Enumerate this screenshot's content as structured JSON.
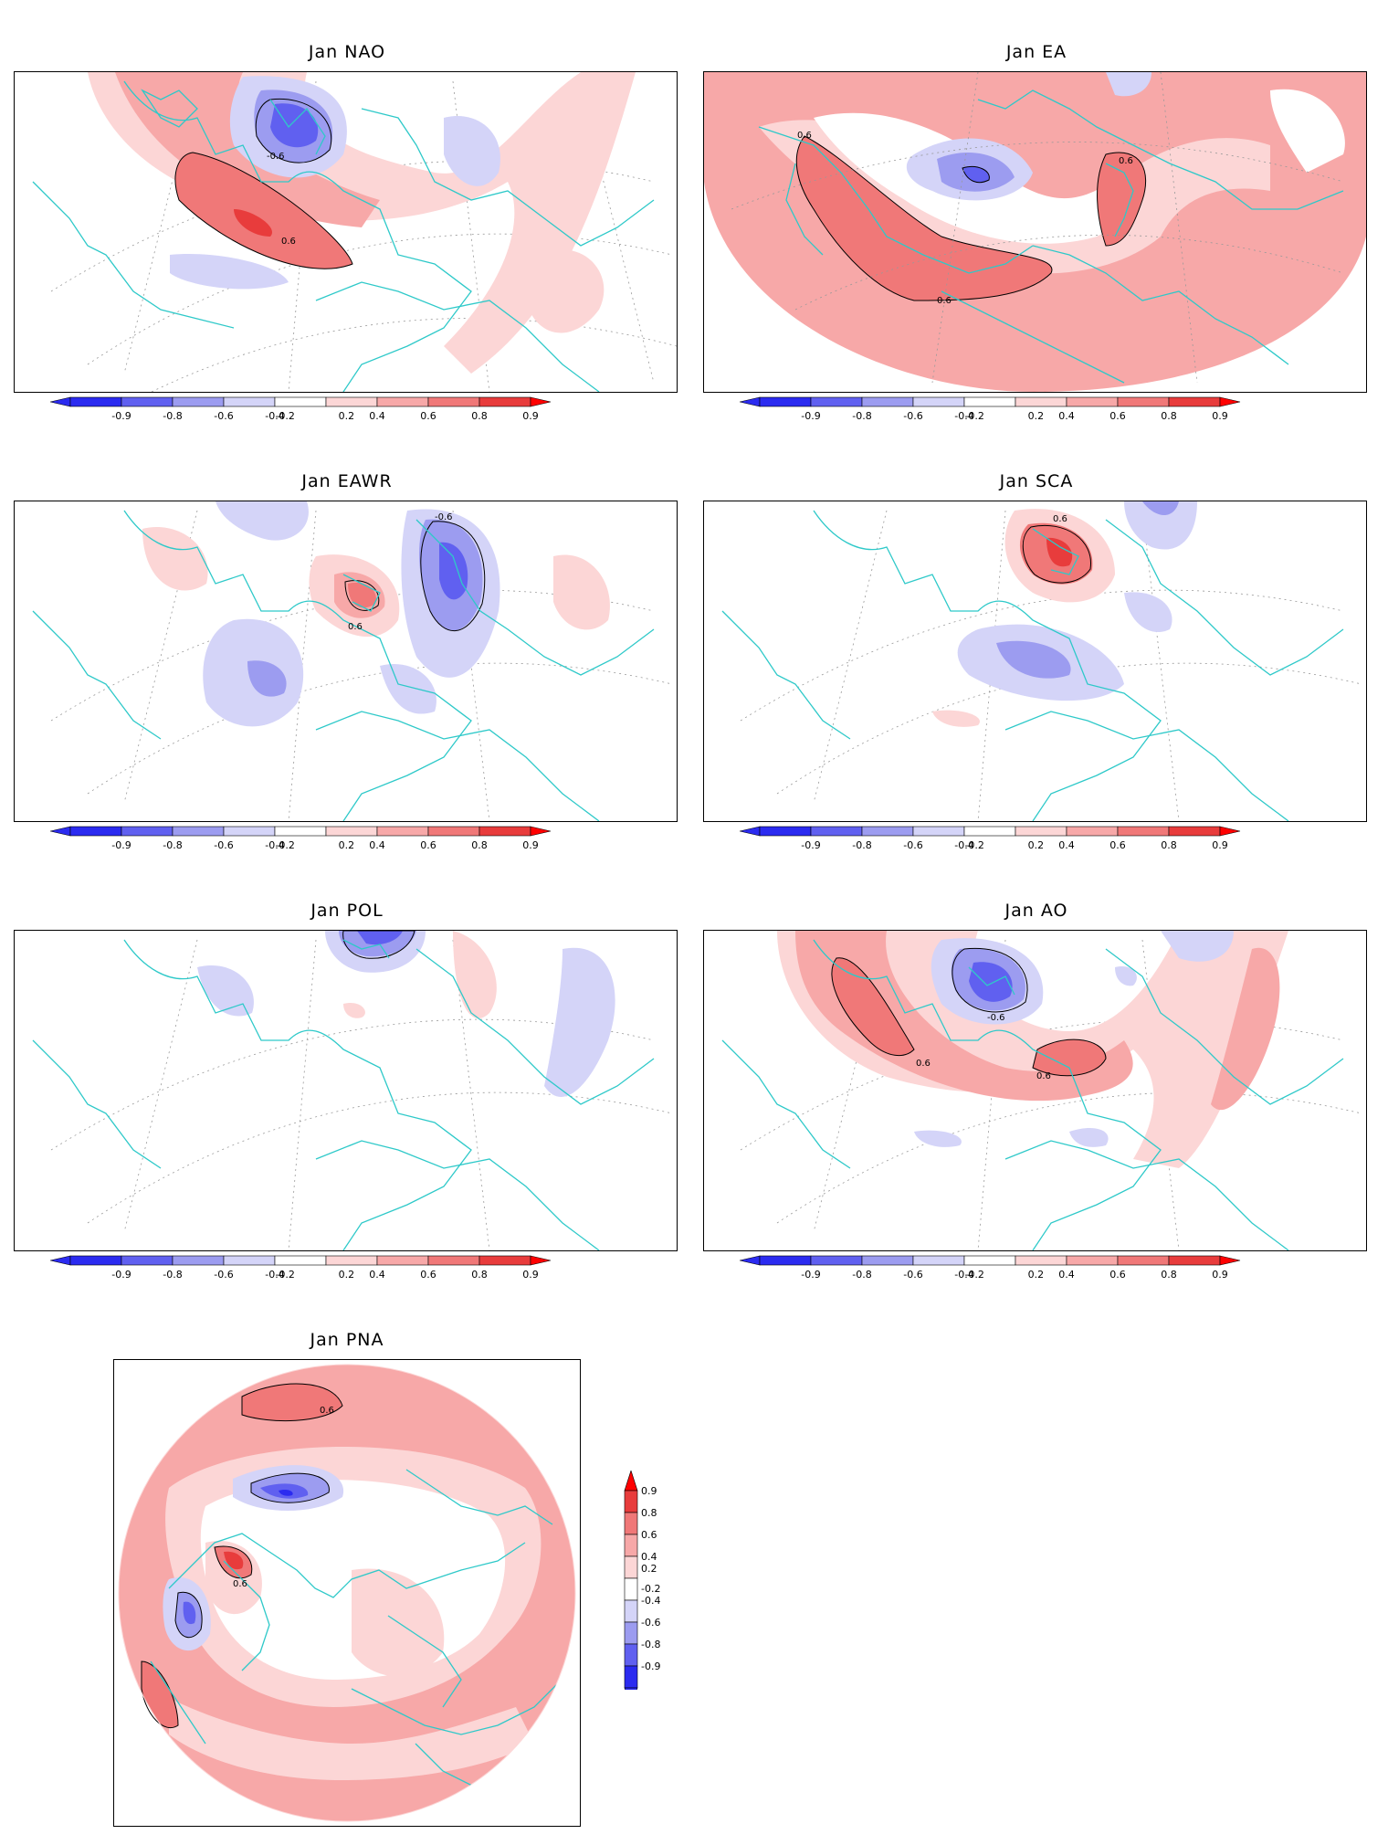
{
  "colorbar": {
    "ticks": [
      "-0.9",
      "-0.8",
      "-0.6",
      "-0.4",
      "-0.2",
      "0.2",
      "0.4",
      "0.6",
      "0.8",
      "0.9"
    ],
    "vertical_ticks": [
      "0.9",
      "0.8",
      "0.6",
      "0.4",
      "0.2",
      "-0.2",
      "-0.4",
      "-0.6",
      "-0.8",
      "-0.9"
    ],
    "colors": {
      "neg4": "#2b2bf0",
      "neg3": "#6060f0",
      "neg2": "#9c9cf0",
      "neg1": "#d4d4f8",
      "zero": "#ffffff",
      "pos1": "#fcd6d6",
      "pos2": "#f7a8a8",
      "pos3": "#f07878",
      "pos4": "#e83c3c",
      "pos5": "#ff0000"
    }
  },
  "panels": [
    {
      "id": "nao",
      "title": "Jan NAO",
      "contour_labels": [
        "-0.6",
        "0.6"
      ]
    },
    {
      "id": "ea",
      "title": "Jan EA",
      "contour_labels": [
        "0.6",
        "0.6",
        "0.6"
      ]
    },
    {
      "id": "eawr",
      "title": "Jan EAWR",
      "contour_labels": [
        "-0.6",
        "0.6"
      ]
    },
    {
      "id": "sca",
      "title": "Jan SCA",
      "contour_labels": [
        "0.6"
      ]
    },
    {
      "id": "pol",
      "title": "Jan POL",
      "contour_labels": []
    },
    {
      "id": "ao",
      "title": "Jan AO",
      "contour_labels": [
        "-0.6",
        "0.6",
        "0.6"
      ]
    },
    {
      "id": "pna",
      "title": "Jan PNA",
      "contour_labels": [
        "0.6",
        "0.6"
      ]
    }
  ]
}
